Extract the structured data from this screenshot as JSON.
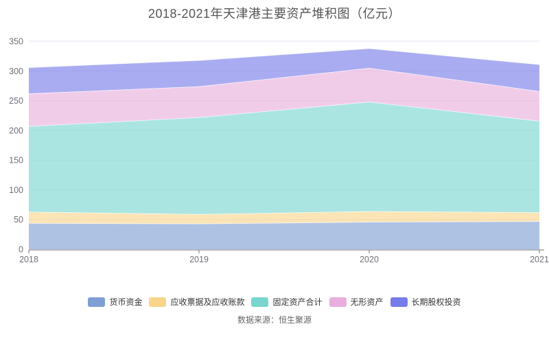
{
  "title": "2018-2021年天津港主要资产堆积图（亿元）",
  "footer": "数据来源：恒生聚源",
  "chart_data": {
    "type": "area",
    "stacked": true,
    "title": "2018-2021年天津港主要资产堆积图（亿元）",
    "x": [
      "2018",
      "2019",
      "2020",
      "2021"
    ],
    "series": [
      {
        "key": "currency-funds",
        "name": "货币资金",
        "color": "#7f9fd3",
        "values": [
          44,
          43,
          46,
          47
        ]
      },
      {
        "key": "notes-and-accounts-receivable",
        "name": "应收票据及应收账款",
        "color": "#f9d48b",
        "values": [
          19,
          16,
          18,
          15
        ]
      },
      {
        "key": "fixed-assets-total",
        "name": "固定资产合计",
        "color": "#79d6cf",
        "values": [
          144,
          163,
          184,
          154
        ]
      },
      {
        "key": "intangible-assets",
        "name": "无形资产",
        "color": "#e9aedc",
        "values": [
          55,
          52,
          57,
          50
        ]
      },
      {
        "key": "long-term-equity-investment",
        "name": "长期股权投资",
        "color": "#787ce9",
        "values": [
          44,
          44,
          33,
          45
        ]
      }
    ],
    "ylim": [
      0,
      350
    ],
    "yticks": [
      0,
      50,
      100,
      150,
      200,
      250,
      300,
      350
    ],
    "xlabel": "",
    "ylabel": "",
    "grid": true,
    "legend_position": "bottom",
    "area_opacity": 0.63
  },
  "style": {
    "background": "#ffffff",
    "title_color": "#555555",
    "axis_color": "#6e7079",
    "grid_color": "#e2e6f0",
    "label_color": "#6e7079",
    "legend_text_color": "#333333",
    "footer_color": "#666666",
    "band_edge_color": "rgba(255,255,255,0.85)"
  }
}
